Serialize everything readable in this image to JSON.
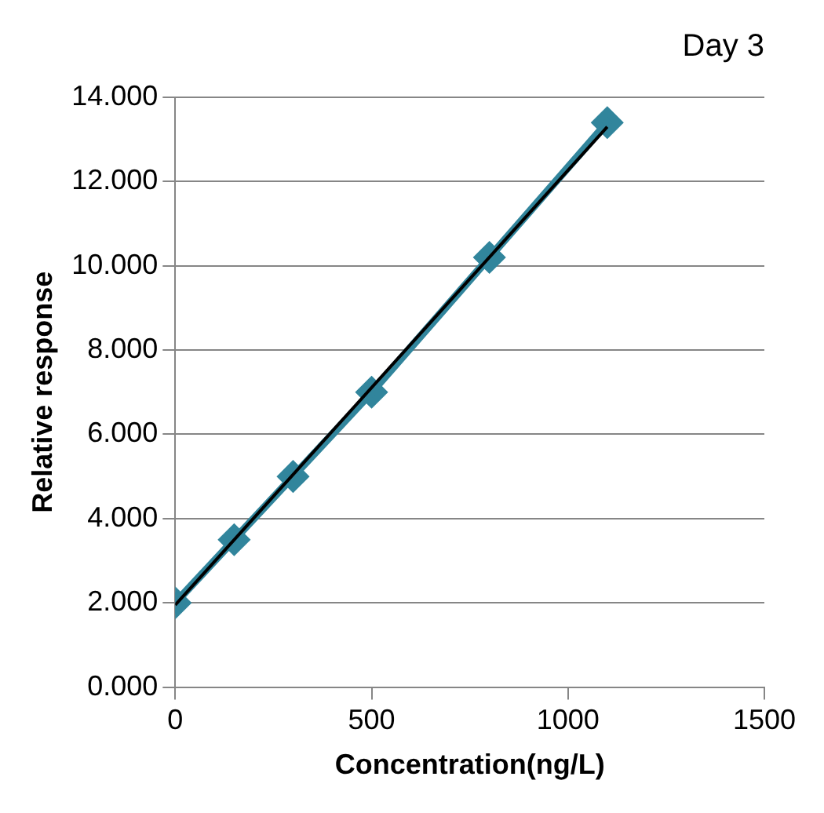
{
  "chart_data": {
    "type": "line",
    "title": "Day 3",
    "xlabel": "Concentration(ng/L)",
    "ylabel": "Relative response",
    "x": [
      0,
      150,
      300,
      500,
      800,
      1100
    ],
    "series": [
      {
        "color": "#31859c",
        "marker": "diamond",
        "values": [
          2.0,
          3.5,
          5.0,
          7.0,
          10.2,
          13.4
        ]
      },
      {
        "type": "line",
        "color": "#000000",
        "marker": "none",
        "x": [
          0,
          1100
        ],
        "values": [
          1.95,
          13.3
        ]
      }
    ],
    "xlim": [
      0,
      1500
    ],
    "xticks": [
      0,
      500,
      1000,
      1500
    ],
    "ylim": [
      0,
      14
    ],
    "yticks": [
      {
        "value": 0,
        "label": "0.000"
      },
      {
        "value": 2,
        "label": "2.000"
      },
      {
        "value": 4,
        "label": "4.000"
      },
      {
        "value": 6,
        "label": "6.000"
      },
      {
        "value": 8,
        "label": "8.000"
      },
      {
        "value": 10,
        "label": "10.000"
      },
      {
        "value": 12,
        "label": "12.000"
      },
      {
        "value": 14,
        "label": "14.000"
      }
    ],
    "grid": "y",
    "legend": false
  }
}
